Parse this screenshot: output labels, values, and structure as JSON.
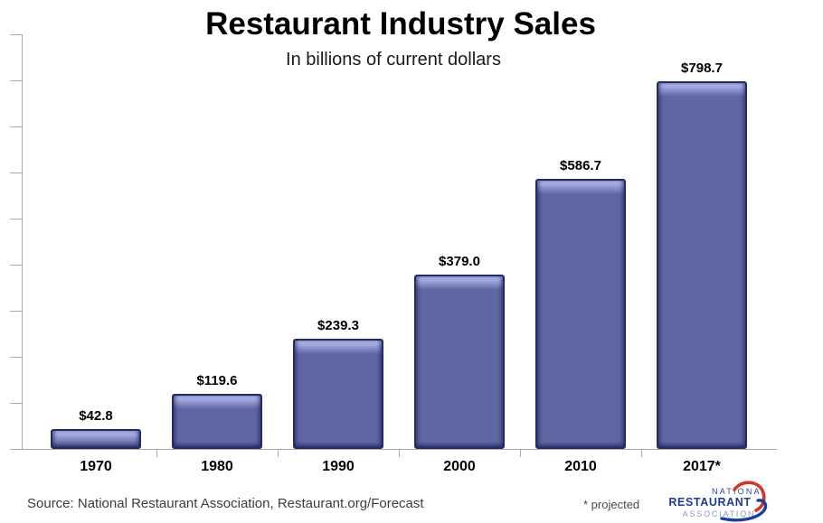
{
  "header": {
    "title": "Restaurant Industry Sales",
    "subtitle": "In billions of current dollars"
  },
  "chart_data": {
    "type": "bar",
    "title": "Restaurant Industry Sales",
    "subtitle": "In billions of current dollars",
    "categories": [
      "1970",
      "1980",
      "1990",
      "2000",
      "2010",
      "2017*"
    ],
    "values": [
      42.8,
      119.6,
      239.3,
      379.0,
      586.7,
      798.7
    ],
    "value_labels": [
      "$42.8",
      "$119.6",
      "$239.3",
      "$379.0",
      "$586.7",
      "$798.7"
    ],
    "xlabel": "",
    "ylabel": "",
    "ylim": [
      0,
      900
    ],
    "ytick_interval": 100,
    "ytick_labels_shown": false,
    "grid": false,
    "legend_position": "none",
    "bar_color": "#5e66a3",
    "bar_border_color": "#232b62",
    "bar_highlight_color": "#aab3e4"
  },
  "footer": {
    "source": "Source: National Restaurant Association, Restaurant.org/Forecast",
    "note": "* projected",
    "logo": {
      "line1": "NATIONAL",
      "line2": "RESTAURANT",
      "line3": "ASSOCIATION"
    }
  },
  "colors": {
    "axis": "#aaaaaa",
    "text": "#000000",
    "source_text": "#3c3c3c",
    "logo_blue": "#1e3e94",
    "logo_light_blue": "#8b98c4",
    "logo_red": "#d2352b"
  }
}
